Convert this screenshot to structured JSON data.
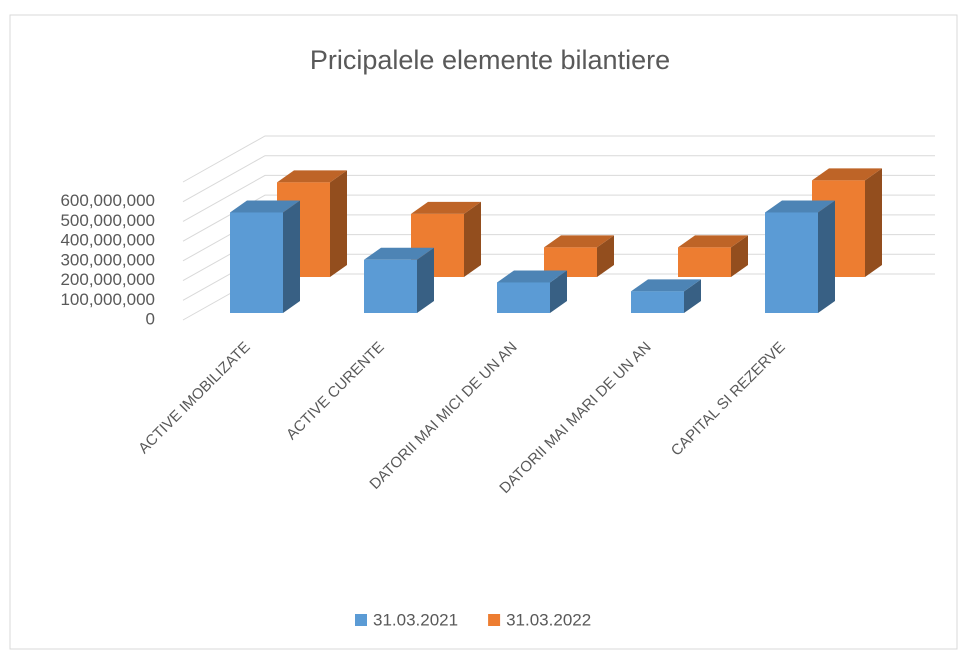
{
  "chart_data": {
    "type": "bar3d",
    "title": "Pricipalele elemente bilantiere",
    "categories": [
      "ACTIVE IMOBILIZATE",
      "ACTIVE CURENTE",
      "DATORII MAI MICI DE UN AN",
      "DATORII MAI MARI DE UN AN",
      "CAPITAL SI REZERVE"
    ],
    "series": [
      {
        "name": "31.03.2021",
        "color": "#5b9bd5",
        "values": [
          510000000,
          270000000,
          155000000,
          110000000,
          510000000
        ]
      },
      {
        "name": "31.03.2022",
        "color": "#ed7d31",
        "values": [
          480000000,
          320000000,
          150000000,
          150000000,
          490000000
        ]
      }
    ],
    "ylim": [
      0,
      700000000
    ],
    "yticks": [
      {
        "value": 0,
        "label": "0"
      },
      {
        "value": 100000000,
        "label": "100,000,000"
      },
      {
        "value": 200000000,
        "label": "200,000,000"
      },
      {
        "value": 300000000,
        "label": "300,000,000"
      },
      {
        "value": 400000000,
        "label": "400,000,000"
      },
      {
        "value": 500000000,
        "label": "500,000,000"
      },
      {
        "value": 600000000,
        "label": "600,000,000"
      }
    ],
    "grid": true,
    "legend": "bottom"
  }
}
